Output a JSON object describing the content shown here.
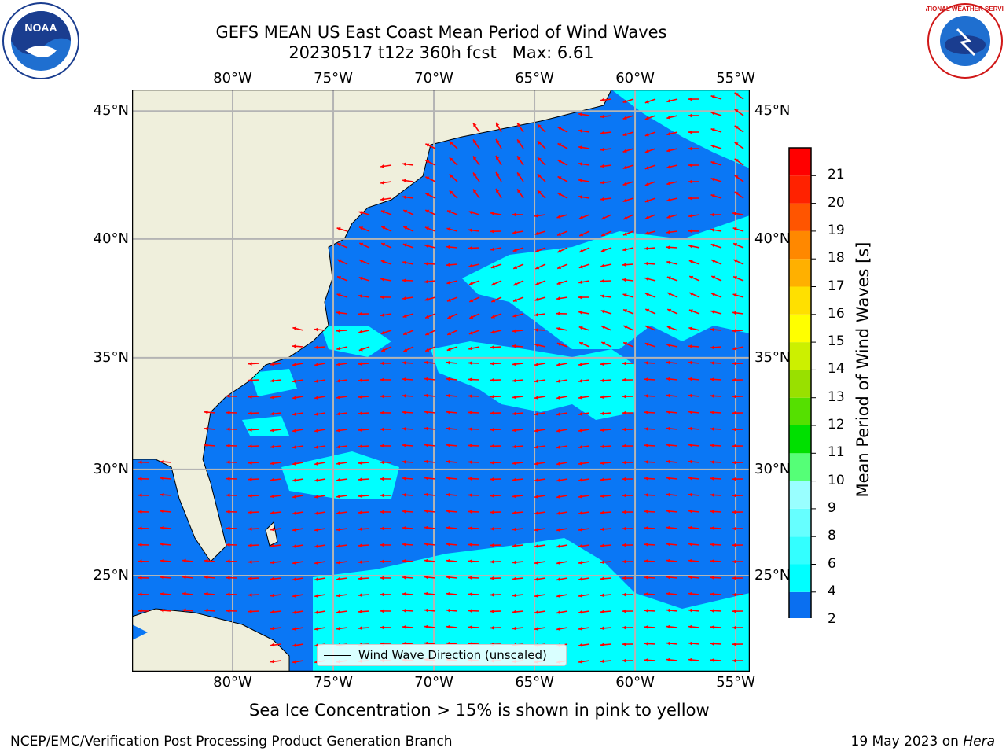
{
  "title": {
    "line1": "GEFS MEAN US East Coast Mean Period of Wind Waves",
    "line2": "20230517 t12z 360h fcst   Max: 6.61"
  },
  "logos": {
    "left": {
      "name": "noaa-logo",
      "text": "NOAA"
    },
    "right": {
      "name": "nws-logo",
      "text": "NATIONAL WEATHER SERVICE"
    }
  },
  "map": {
    "lon_labels": [
      "80°W",
      "75°W",
      "70°W",
      "65°W",
      "60°W",
      "55°W"
    ],
    "lat_labels": [
      "45°N",
      "40°N",
      "35°N",
      "30°N",
      "25°N"
    ],
    "lon_values": [
      -80,
      -75,
      -70,
      -65,
      -60,
      -55
    ],
    "lat_values": [
      45,
      40,
      35,
      30,
      25
    ],
    "extent": {
      "lon_min": -85,
      "lon_max": -54.3,
      "lat_min": 20.3,
      "lat_max": 45.8
    },
    "colors": {
      "ocean": "#0a77f5",
      "light_cyan": "#00ffff",
      "land": "#efefdc",
      "arrow": "#ff0000",
      "grid": "#b4b4b4"
    },
    "legend_label": "Wind Wave Direction (unscaled)"
  },
  "colorbar": {
    "label": "Mean Period of Wind Waves [s]",
    "ticks": [
      "2",
      "4",
      "6",
      "8",
      "9",
      "10",
      "11",
      "12",
      "13",
      "14",
      "15",
      "16",
      "17",
      "18",
      "19",
      "20",
      "21"
    ],
    "colors": [
      "#0a6ff0",
      "#00ffff",
      "#33ffff",
      "#66ffff",
      "#99ffff",
      "#55ff77",
      "#00e000",
      "#55e000",
      "#99e000",
      "#ccf000",
      "#ffff00",
      "#ffe000",
      "#ffb000",
      "#ff8800",
      "#ff5500",
      "#ff2200",
      "#ff0000"
    ],
    "under_color": "#0000ff"
  },
  "note": "Sea Ice Concentration > 15% is shown in pink to yellow",
  "footer": {
    "left": "NCEP/EMC/Verification Post Processing Product Generation Branch",
    "right_date": "19 May 2023 on ",
    "right_host": "Hera"
  }
}
